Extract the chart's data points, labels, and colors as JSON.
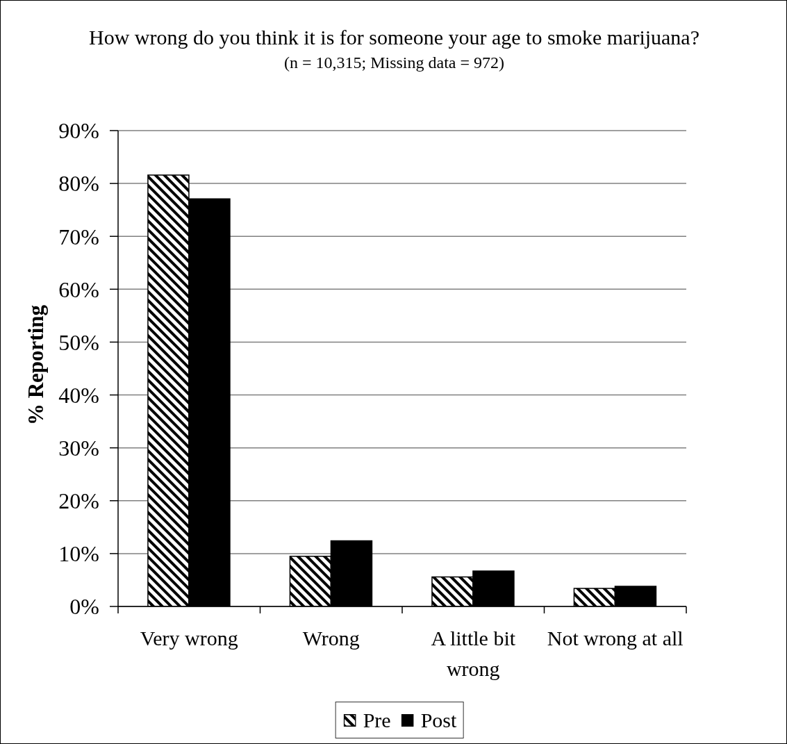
{
  "chart_data": {
    "type": "bar",
    "title": "How wrong do you think it is for someone your age to smoke marijuana?",
    "subtitle": "(n = 10,315; Missing data = 972)",
    "ylabel": "% Reporting",
    "categories": [
      "Very wrong",
      "Wrong",
      "A little bit wrong",
      "Not wrong at all"
    ],
    "series": [
      {
        "name": "Pre",
        "color": "#000000",
        "values": [
          81.6,
          9.5,
          5.6,
          3.4
        ]
      },
      {
        "name": "Post",
        "color": "#000000",
        "values": [
          77.1,
          12.4,
          6.7,
          3.8
        ]
      }
    ],
    "ylim": [
      0,
      90
    ],
    "yticks": [
      {
        "value": 0,
        "label": "0%"
      },
      {
        "value": 10,
        "label": "10%"
      },
      {
        "value": 20,
        "label": "20%"
      },
      {
        "value": 30,
        "label": "30%"
      },
      {
        "value": 40,
        "label": "40%"
      },
      {
        "value": 50,
        "label": "50%"
      },
      {
        "value": 60,
        "label": "60%"
      },
      {
        "value": 70,
        "label": "70%"
      },
      {
        "value": 80,
        "label": "80%"
      },
      {
        "value": 90,
        "label": "90%"
      }
    ],
    "grid": "y",
    "legend": "bottom"
  }
}
